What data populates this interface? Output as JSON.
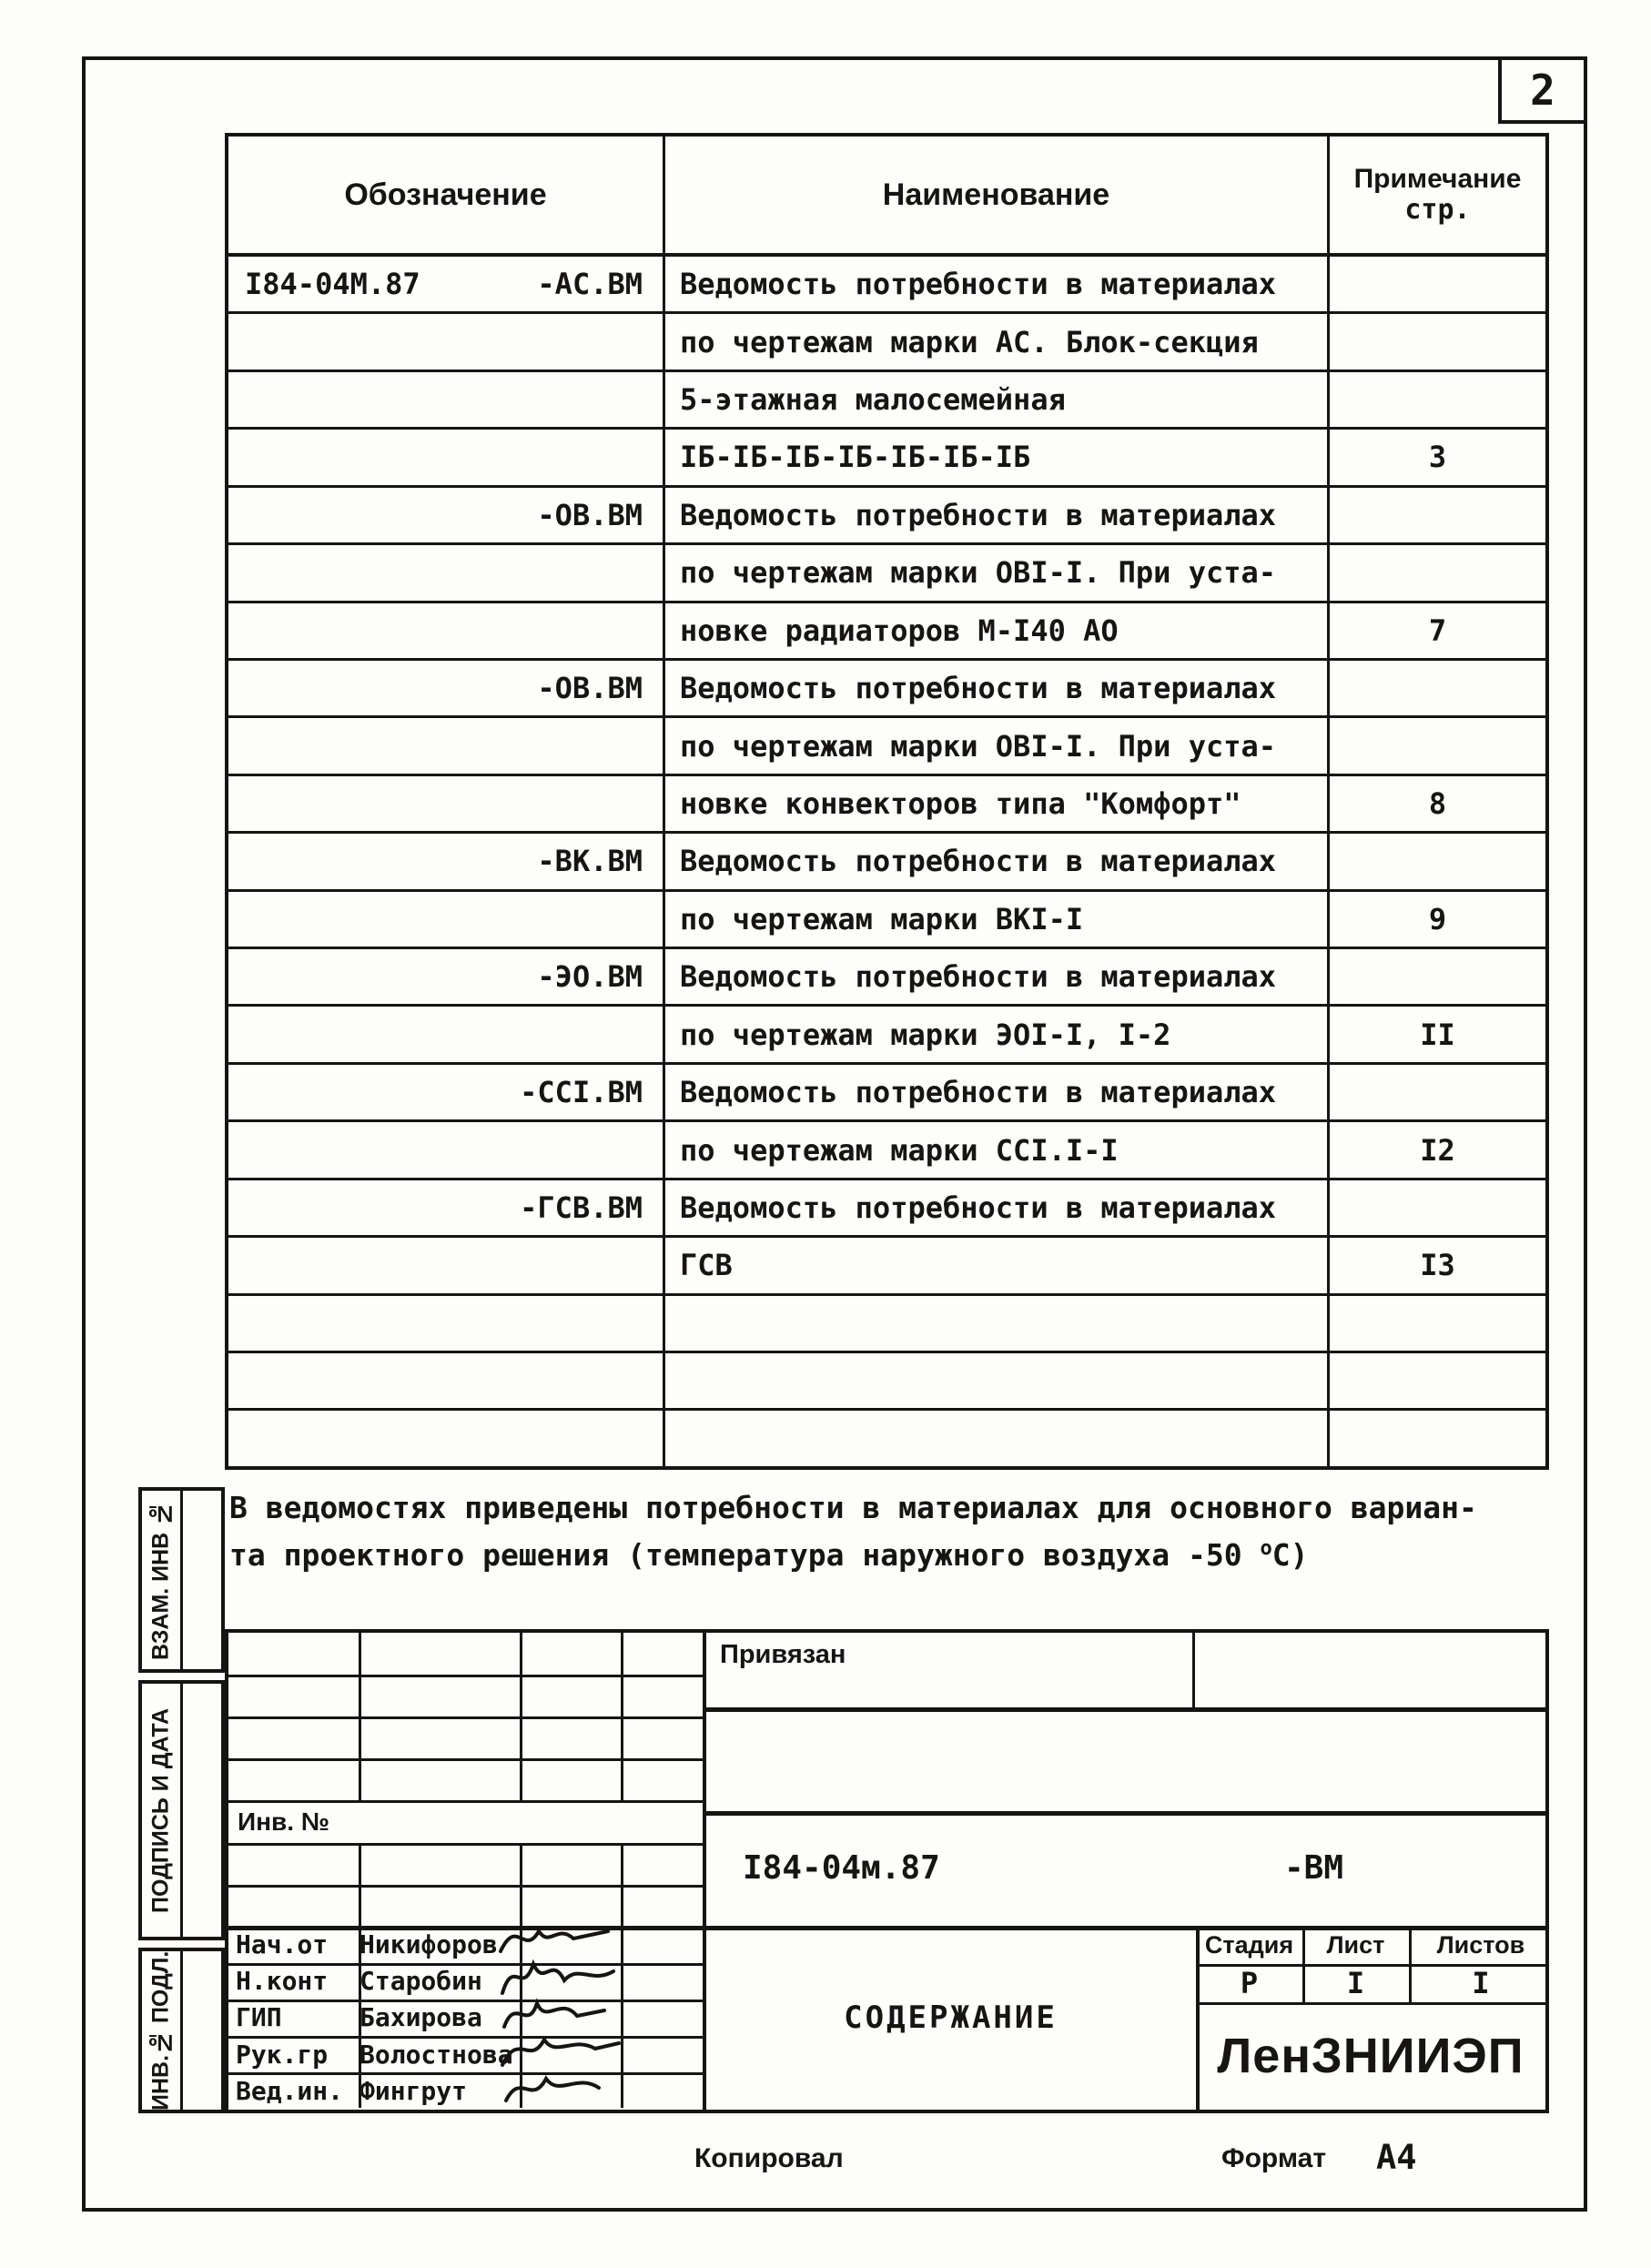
{
  "page": {
    "number": "2"
  },
  "table": {
    "headers": {
      "designation": "Обозначение",
      "name": "Наименование",
      "note_line1": "Примечание",
      "note_line2": "стр."
    },
    "rows": [
      {
        "code": "I84-04М.87",
        "designation": "-АС.ВМ",
        "name": "Ведомость потребности в материалах",
        "page": ""
      },
      {
        "designation": "",
        "name": "по чертежам марки АС. Блок-секция",
        "page": ""
      },
      {
        "designation": "",
        "name": "5-этажная малосемейная",
        "page": ""
      },
      {
        "designation": "",
        "name": "IБ-IБ-IБ-IБ-IБ-IБ-IБ",
        "page": "3"
      },
      {
        "designation": "-ОВ.ВМ",
        "name": "Ведомость потребности в материалах",
        "page": ""
      },
      {
        "designation": "",
        "name": "по чертежам марки ОВI-I. При уста-",
        "page": ""
      },
      {
        "designation": "",
        "name": "новке радиаторов М-I40 АО",
        "page": "7"
      },
      {
        "designation": "-ОВ.ВМ",
        "name": "Ведомость потребности в материалах",
        "page": ""
      },
      {
        "designation": "",
        "name": "по чертежам марки ОВI-I. При уста-",
        "page": ""
      },
      {
        "designation": "",
        "name": "новке конвекторов типа \"Комфорт\"",
        "page": "8"
      },
      {
        "designation": "-ВК.ВМ",
        "name": "Ведомость потребности в материалах",
        "page": ""
      },
      {
        "designation": "",
        "name": "по чертежам марки ВКI-I",
        "page": "9"
      },
      {
        "designation": "-ЭО.ВМ",
        "name": "Ведомость потребности в материалах",
        "page": ""
      },
      {
        "designation": "",
        "name": "по чертежам марки ЭОI-I, I-2",
        "page": "II"
      },
      {
        "designation": "-ССI.ВМ",
        "name": "Ведомость потребности в материалах",
        "page": ""
      },
      {
        "designation": "",
        "name": "по чертежам марки ССI.I-I",
        "page": "I2"
      },
      {
        "designation": "-ГСВ.ВМ",
        "name": "Ведомость потребности в материалах",
        "page": ""
      },
      {
        "designation": "",
        "name": "ГСВ",
        "page": "I3"
      },
      {
        "designation": "",
        "name": "",
        "page": ""
      },
      {
        "designation": "",
        "name": "",
        "page": ""
      },
      {
        "designation": "",
        "name": "",
        "page": ""
      }
    ]
  },
  "note": {
    "line1": "В ведомостях приведены потребности в материалах для основного вариан-",
    "line2_pre": "та проектного решения (температура наружного воздуха -50 ",
    "line2_sup": "о",
    "line2_post": "С)"
  },
  "sidebar": {
    "labels": [
      "ВЗАМ. ИНВ №",
      "ПОДПИСЬ И ДАТА",
      "ИНВ.№ ПОДЛ."
    ]
  },
  "stamp": {
    "attached_label": "Привязан",
    "inv_label": "Инв. №",
    "doc_code": "I84-04м.87",
    "doc_suffix": "-ВМ",
    "title": "СОДЕРЖАНИЕ",
    "stage_label": "Стадия",
    "sheet_label": "Лист",
    "sheets_label": "Листов",
    "stage_value": "Р",
    "sheet_value": "I",
    "sheets_value": "I",
    "organization": "ЛенЗНИИЭП",
    "signers": [
      {
        "role": "Нач.от",
        "name": "Никифоров"
      },
      {
        "role": "Н.конт",
        "name": "Старобин"
      },
      {
        "role": "ГИП",
        "name": "Бахирова"
      },
      {
        "role": "Рук.гр",
        "name": "Волостнова"
      },
      {
        "role": "Вед.ин.",
        "name": "Фингрут"
      }
    ]
  },
  "footer": {
    "copied_label": "Копировал",
    "format_label": "Формат",
    "format_value": "А4"
  }
}
